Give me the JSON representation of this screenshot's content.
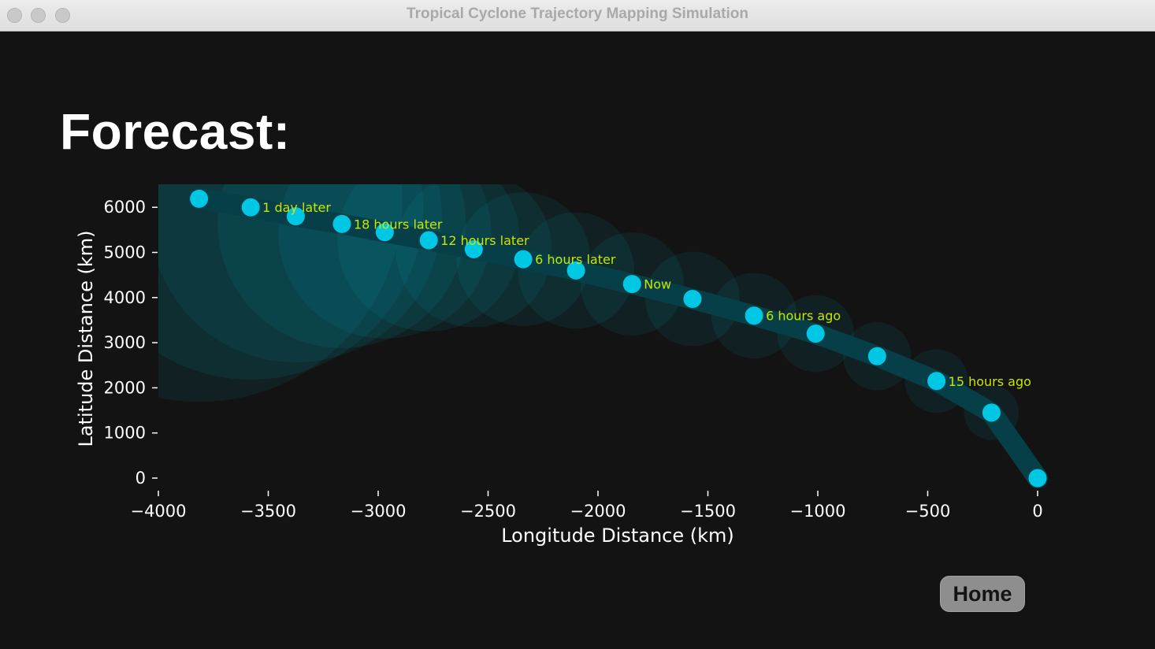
{
  "window": {
    "title": "Tropical Cyclone Trajectory Mapping Simulation"
  },
  "heading": "Forecast:",
  "home_button": "Home",
  "colors": {
    "background": "#131313",
    "point": "#00c8e4",
    "track": "#063f48",
    "cone": "#00b4c8",
    "label": "#c8e600",
    "axis_text": "#ffffff"
  },
  "chart_data": {
    "type": "scatter",
    "title": "",
    "xlabel": "Longitude Distance (km)",
    "ylabel": "Latitude Distance (km)",
    "xlim": [
      -4000,
      0
    ],
    "ylim": [
      0,
      6500
    ],
    "xticks": [
      -4000,
      -3500,
      -3000,
      -2500,
      -2000,
      -1500,
      -1000,
      -500,
      0
    ],
    "yticks": [
      0,
      1000,
      2000,
      3000,
      4000,
      5000,
      6000
    ],
    "xtick_labels": [
      "−4000",
      "−3500",
      "−3000",
      "−2500",
      "−2000",
      "−1500",
      "−1000",
      "−500",
      "0"
    ],
    "ytick_labels": [
      "0",
      "1000",
      "2000",
      "3000",
      "4000",
      "5000",
      "6000"
    ],
    "grid": false,
    "points": [
      {
        "x": 0,
        "y": 0,
        "label": ""
      },
      {
        "x": -210,
        "y": 1450,
        "label": ""
      },
      {
        "x": -460,
        "y": 2150,
        "label": "15 hours ago"
      },
      {
        "x": -730,
        "y": 2700,
        "label": ""
      },
      {
        "x": -1010,
        "y": 3200,
        "label": ""
      },
      {
        "x": -1290,
        "y": 3600,
        "label": "6 hours ago"
      },
      {
        "x": -1570,
        "y": 3970,
        "label": ""
      },
      {
        "x": -1845,
        "y": 4300,
        "label": "Now"
      },
      {
        "x": -2100,
        "y": 4600,
        "label": ""
      },
      {
        "x": -2340,
        "y": 4850,
        "label": "6 hours later"
      },
      {
        "x": -2565,
        "y": 5070,
        "label": ""
      },
      {
        "x": -2770,
        "y": 5270,
        "label": "12 hours later"
      },
      {
        "x": -2970,
        "y": 5450,
        "label": ""
      },
      {
        "x": -3165,
        "y": 5630,
        "label": "18 hours later"
      },
      {
        "x": -3375,
        "y": 5800,
        "label": ""
      },
      {
        "x": -3580,
        "y": 6000,
        "label": "1 day later"
      },
      {
        "x": -3815,
        "y": 6190,
        "label": ""
      }
    ],
    "uncertainty_radius_km": [
      0,
      60,
      80,
      90,
      110,
      130,
      150,
      170,
      200,
      240,
      290,
      350,
      420,
      500,
      600,
      720,
      860
    ]
  }
}
